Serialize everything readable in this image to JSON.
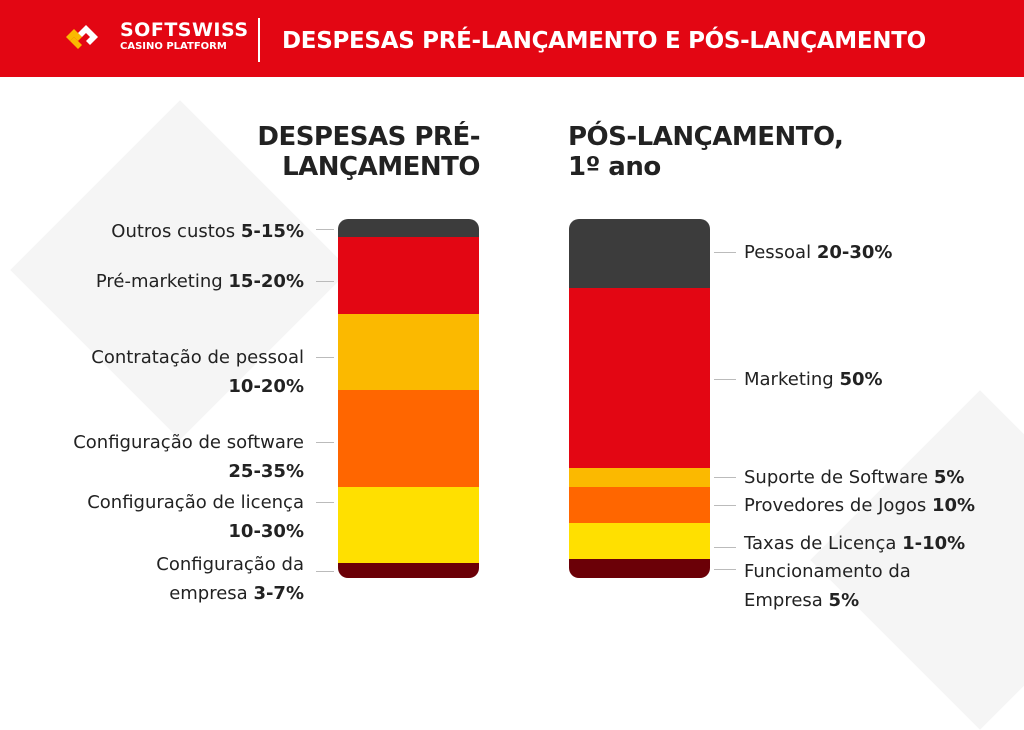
{
  "header": {
    "brand": "SOFTSWISS",
    "brand_sub": "CASINO PLATFORM",
    "title": "DESPESAS PRÉ-LANÇAMENTO E PÓS-LANÇAMENTO"
  },
  "chart_data": [
    {
      "type": "bar",
      "stacked": true,
      "title": "DESPESAS PRÉ-LANÇAMENTO",
      "segments": [
        {
          "label": "Outros custos",
          "value": "5-15%",
          "color": "#3c3c3c"
        },
        {
          "label": "Pré-marketing",
          "value": "15-20%",
          "color": "#e30613"
        },
        {
          "label": "Contratação de pessoal",
          "value": "10-20%",
          "color": "#fbb900"
        },
        {
          "label": "Configuração de software",
          "value": "25-35%",
          "color": "#ff6600"
        },
        {
          "label": "Configuração de licença",
          "value": "10-30%",
          "color": "#ffe000"
        },
        {
          "label": "Configuração da empresa",
          "value": "3-7%",
          "color": "#6b0007"
        }
      ]
    },
    {
      "type": "bar",
      "stacked": true,
      "title": "PÓS-LANÇAMENTO, 1º ano",
      "segments": [
        {
          "label": "Pessoal",
          "value": "20-30%",
          "color": "#3c3c3c"
        },
        {
          "label": "Marketing",
          "value": "50%",
          "color": "#e30613"
        },
        {
          "label": "Suporte de Software",
          "value": "5%",
          "color": "#fbb900"
        },
        {
          "label": "Provedores de Jogos",
          "value": "10%",
          "color": "#ff6600"
        },
        {
          "label": "Taxas de Licença",
          "value": "1-10%",
          "color": "#ffe000"
        },
        {
          "label": "Funcionamento da Empresa",
          "value": "5%",
          "color": "#6b0007"
        }
      ]
    }
  ]
}
